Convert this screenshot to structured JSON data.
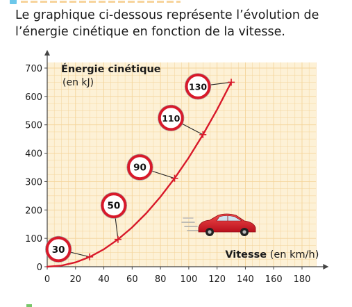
{
  "intro": {
    "line1": "Le graphique ci-dessous représente l’évolution de",
    "line2": "l’énergie cinétique en fonction de la vitesse."
  },
  "colors": {
    "grid_fill": "#fdf1d6",
    "grid_line": "#f4d49a",
    "curve": "#d8192a",
    "sign_border": "#d8192a",
    "axis": "#444444",
    "text": "#1a1a1a",
    "car": "#d8192a"
  },
  "decor": {
    "car_icon": "red-car-icon",
    "sign_icon": "speed-limit-sign-icon"
  },
  "chart_data": {
    "type": "line",
    "title": "",
    "ylabel": "Énergie cinétique",
    "ylabel_unit": "(en kJ)",
    "xlabel": "Vitesse",
    "xlabel_unit": "(en km/h)",
    "xlim": [
      0,
      190
    ],
    "ylim": [
      0,
      720
    ],
    "grid": true,
    "x_ticks": [
      "0",
      "20",
      "40",
      "60",
      "80",
      "100",
      "120",
      "140",
      "160",
      "180"
    ],
    "y_ticks": [
      "0",
      "100",
      "200",
      "300",
      "400",
      "500",
      "600",
      "700"
    ],
    "series": [
      {
        "x": [
          0,
          10,
          20,
          30,
          40,
          50,
          60,
          70,
          80,
          90,
          100,
          110,
          120,
          130
        ],
        "y": [
          0,
          3.8,
          15.4,
          34.6,
          61.5,
          96.2,
          138.5,
          188.5,
          246.2,
          311.5,
          384.6,
          465.4,
          553.8,
          650
        ]
      }
    ],
    "marked_points": [
      {
        "x": 30,
        "y": 34.6,
        "label": "30"
      },
      {
        "x": 50,
        "y": 96.2,
        "label": "50"
      },
      {
        "x": 90,
        "y": 311.5,
        "label": "90"
      },
      {
        "x": 110,
        "y": 465.4,
        "label": "110"
      },
      {
        "x": 130,
        "y": 650,
        "label": "130"
      }
    ]
  }
}
